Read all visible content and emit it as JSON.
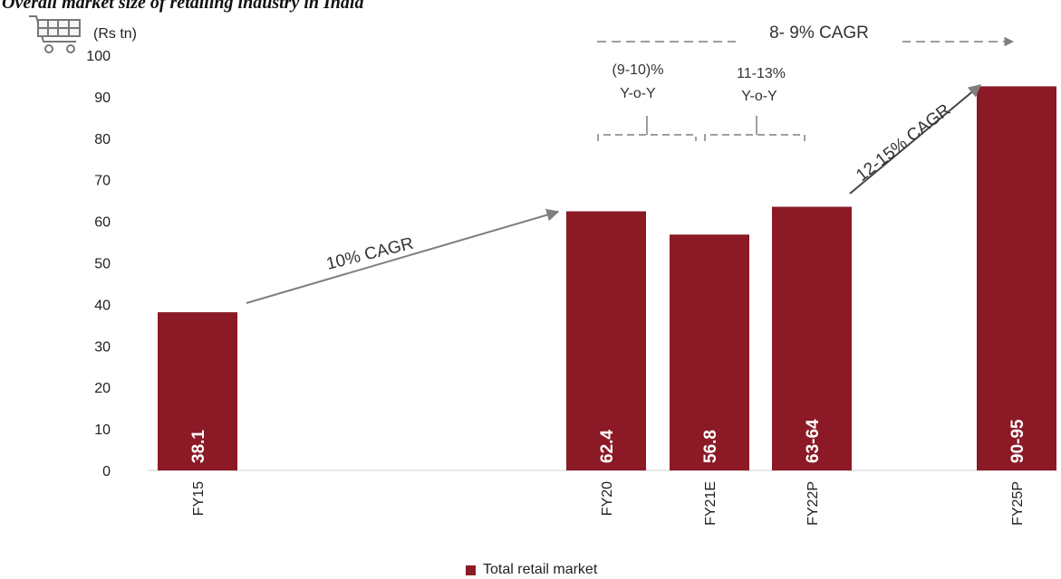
{
  "title": "Overall market size of retailing industry in India",
  "unit_label": "(Rs tn)",
  "icon": "shopping-cart-icon",
  "colors": {
    "bar": "#8B1A26",
    "arrow": "#7f7f7f",
    "text": "#222222"
  },
  "chart_data": {
    "type": "bar",
    "categories": [
      "FY15",
      "FY20",
      "FY21E",
      "FY22P",
      "FY25P"
    ],
    "series": [
      {
        "name": "Total retail market",
        "values": [
          38.1,
          62.4,
          56.8,
          63.5,
          92.5
        ]
      }
    ],
    "data_labels": [
      "38.1",
      "62.4",
      "56.8",
      "63-64",
      "90-95"
    ],
    "ylabel": "(Rs tn)",
    "ylim": [
      0,
      100
    ],
    "yticks": [
      0,
      10,
      20,
      30,
      40,
      50,
      60,
      70,
      80,
      90,
      100
    ],
    "grid": false,
    "legend": "bottom",
    "annotations": {
      "cagr_fy15_fy20": "10% CAGR",
      "cagr_fy22_fy25": "12-15% CAGR",
      "cagr_fy20_fy25": "8- 9% CAGR",
      "yoy_fy21_line1": "(9-10)%",
      "yoy_fy21_line2": "Y-o-Y",
      "yoy_fy22_line1": "11-13%",
      "yoy_fy22_line2": "Y-o-Y"
    }
  }
}
